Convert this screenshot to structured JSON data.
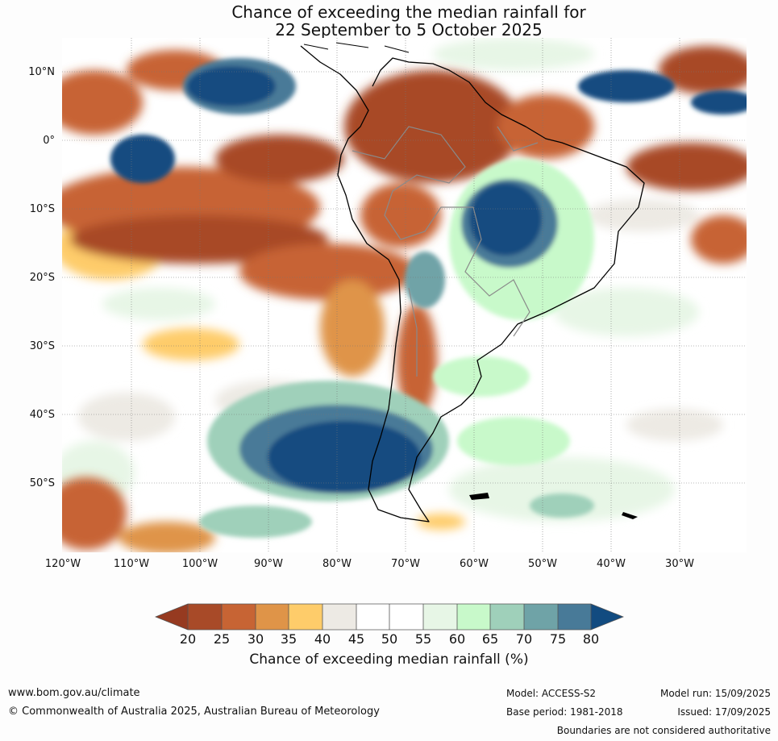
{
  "title_line1": "Chance of exceeding the median rainfall for",
  "title_line2": "22 September to 5 October 2025",
  "lat_labels": [
    "10°N",
    "0°",
    "10°S",
    "20°S",
    "30°S",
    "40°S",
    "50°S"
  ],
  "lon_labels": [
    "120°W",
    "110°W",
    "100°W",
    "90°W",
    "80°W",
    "70°W",
    "60°W",
    "50°W",
    "40°W",
    "30°W"
  ],
  "colorbar": {
    "title": "Chance of exceeding median rainfall (%)",
    "ticks": [
      "20",
      "25",
      "30",
      "35",
      "40",
      "45",
      "50",
      "55",
      "60",
      "65",
      "70",
      "75",
      "80"
    ],
    "colors": {
      "below20": "#963a20",
      "c20_25": "#a84a28",
      "c25_30": "#c76434",
      "c30_35": "#df9448",
      "c35_40": "#fecc6a",
      "c40_45": "#edeae4",
      "c45_50": "#ffffff",
      "c50_55": "#ffffff",
      "c55_60": "#e7f6e6",
      "c60_65": "#c8f9ca",
      "c65_70": "#9fd0ba",
      "c70_75": "#6fa3a7",
      "c75_80": "#487a98",
      "above80": "#124b80"
    }
  },
  "footer": {
    "url": "www.bom.gov.au/climate",
    "copyright": "© Commonwealth of Australia 2025, Australian Bureau of Meteorology",
    "model": "Model: ACCESS-S2",
    "base_period": "Base period: 1981-2018",
    "model_run": "Model run: 15/09/2025",
    "issued": "Issued: 17/09/2025",
    "boundaries_note": "Boundaries are not considered authoritative"
  }
}
